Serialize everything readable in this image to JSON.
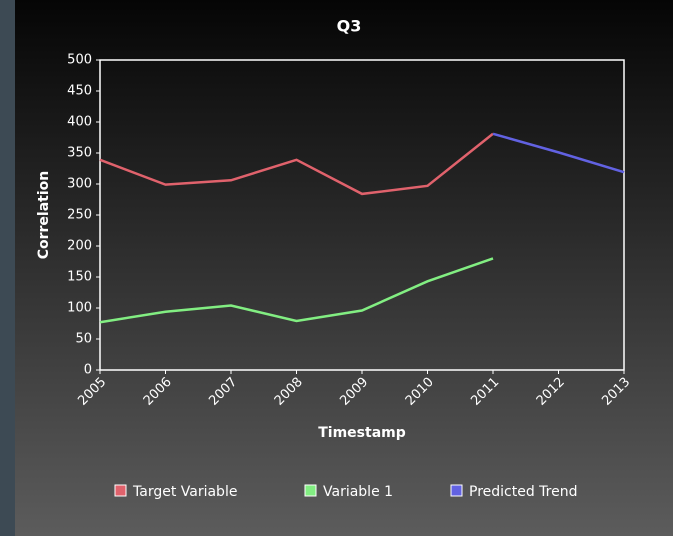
{
  "chart_data": {
    "type": "line",
    "title": "Q3",
    "x_label": "Timestamp",
    "y_label": "Correlation",
    "x": [
      2005,
      2006,
      2007,
      2008,
      2009,
      2010,
      2011,
      2012,
      2013
    ],
    "xlim": [
      2005,
      2013
    ],
    "xticks": [
      2005,
      2006,
      2007,
      2008,
      2009,
      2010,
      2011,
      2012,
      2013
    ],
    "ylim": [
      0,
      500
    ],
    "yticks": [
      0,
      50,
      100,
      150,
      200,
      250,
      300,
      350,
      400,
      450,
      500
    ],
    "legend": "bottom",
    "series": [
      {
        "name": "Target Variable",
        "color": "#e0626c",
        "values": [
          339,
          299,
          306,
          339,
          284,
          297,
          381,
          null,
          null
        ]
      },
      {
        "name": "Variable 1",
        "color": "#82ee82",
        "values": [
          77,
          94,
          104,
          79,
          96,
          143,
          180,
          null,
          null
        ]
      },
      {
        "name": "Predicted Trend",
        "color": "#6262e2",
        "values": [
          null,
          null,
          null,
          null,
          null,
          null,
          381,
          351,
          319
        ]
      }
    ]
  }
}
